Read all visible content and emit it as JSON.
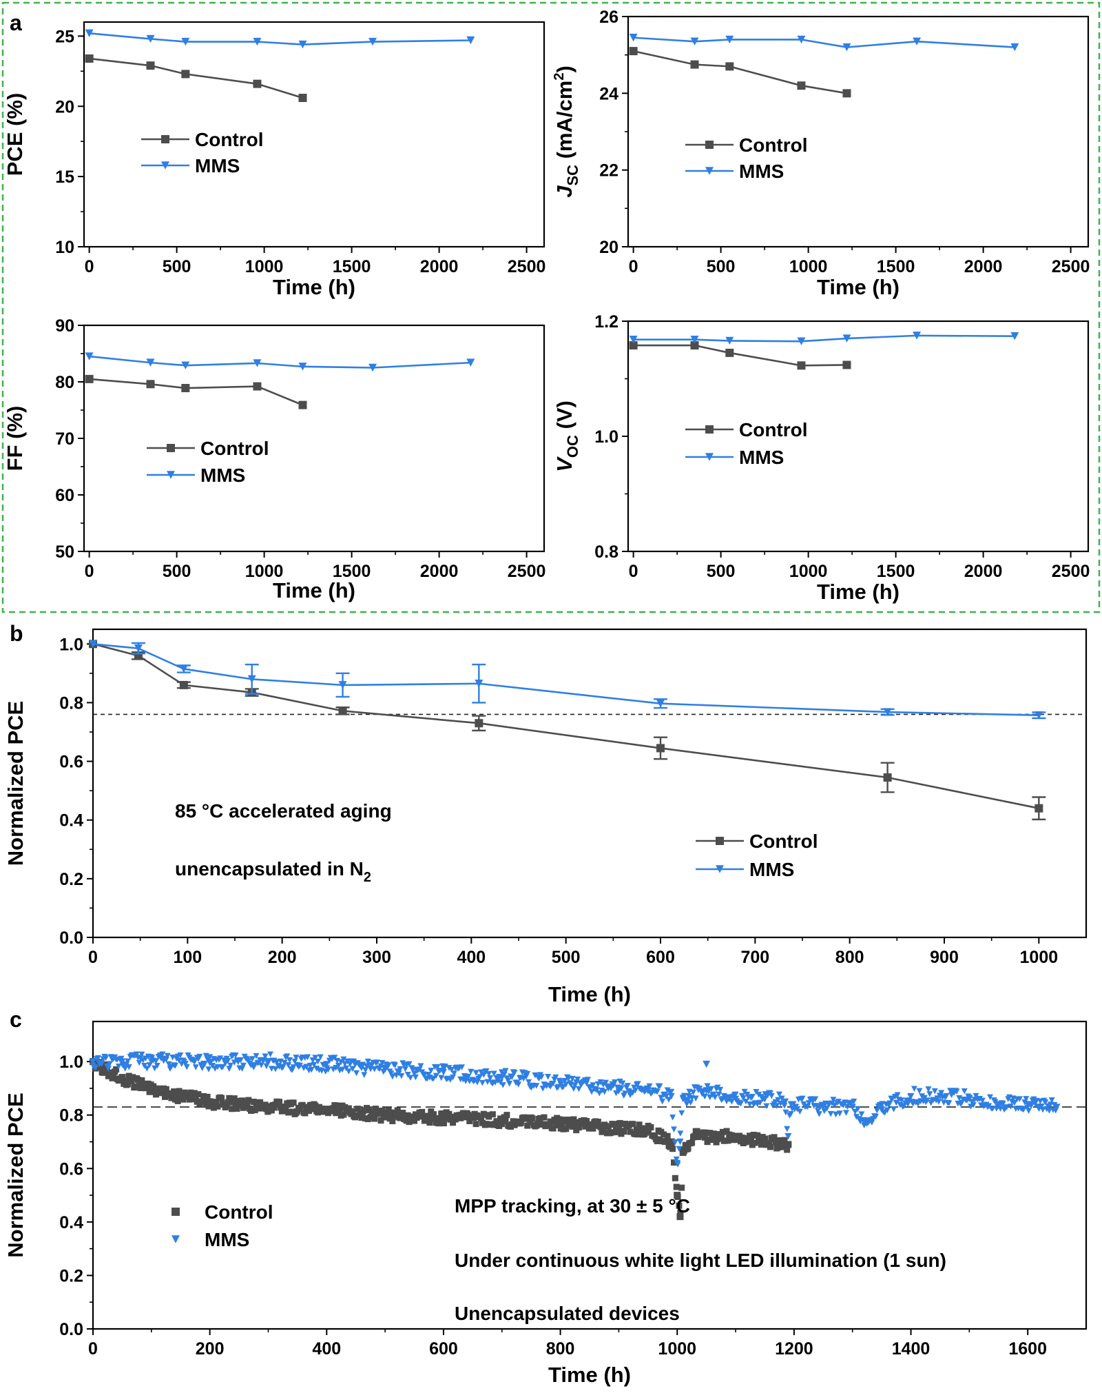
{
  "panel_labels": {
    "a": "a",
    "b": "b",
    "c": "c"
  },
  "colors": {
    "control": "#4d4d4d",
    "mms": "#2f7fe3",
    "frame": "#3cb44b"
  },
  "legend": {
    "control": "Control",
    "mms": "MMS"
  },
  "chart_data": [
    {
      "id": "a1",
      "type": "line",
      "panel": "a",
      "xlabel": "Time (h)",
      "ylabel": "PCE (%)",
      "xlim": [
        -30,
        2600
      ],
      "ylim": [
        10,
        26
      ],
      "xticks": [
        0,
        500,
        1000,
        1500,
        2000,
        2500
      ],
      "xtick_labels": [
        "0",
        "500",
        "1000",
        "1500",
        "2000",
        "2500"
      ],
      "yticks": [
        10,
        15,
        20,
        25
      ],
      "ytick_labels": [
        "10",
        "15",
        "20",
        "25"
      ],
      "series": [
        {
          "name": "Control",
          "marker": "square",
          "x": [
            0,
            350,
            550,
            960,
            1220
          ],
          "y": [
            23.4,
            22.9,
            22.3,
            21.6,
            20.6
          ]
        },
        {
          "name": "MMS",
          "marker": "triangle-down",
          "x": [
            0,
            350,
            550,
            960,
            1220,
            1620,
            2180
          ],
          "y": [
            25.2,
            24.8,
            24.6,
            24.6,
            24.4,
            24.6,
            24.7
          ]
        }
      ]
    },
    {
      "id": "a2",
      "type": "line",
      "panel": "a",
      "xlabel": "Time (h)",
      "ylabel": "JSC (mA/cm2)",
      "ylabel_parts": {
        "main": "J",
        "sub": "SC",
        "mid": " (mA/cm",
        "sup": "2",
        "end": ")"
      },
      "xlim": [
        -30,
        2600
      ],
      "ylim": [
        20,
        26
      ],
      "xticks": [
        0,
        500,
        1000,
        1500,
        2000,
        2500
      ],
      "xtick_labels": [
        "0",
        "500",
        "1000",
        "1500",
        "2000",
        "2500"
      ],
      "yticks": [
        20,
        22,
        24,
        26
      ],
      "ytick_labels": [
        "20",
        "22",
        "24",
        "26"
      ],
      "series": [
        {
          "name": "Control",
          "marker": "square",
          "x": [
            0,
            350,
            550,
            960,
            1220
          ],
          "y": [
            25.1,
            24.75,
            24.7,
            24.2,
            24.0
          ]
        },
        {
          "name": "MMS",
          "marker": "triangle-down",
          "x": [
            0,
            350,
            550,
            960,
            1220,
            1620,
            2180
          ],
          "y": [
            25.45,
            25.35,
            25.4,
            25.4,
            25.2,
            25.35,
            25.2
          ]
        }
      ]
    },
    {
      "id": "a3",
      "type": "line",
      "panel": "a",
      "xlabel": "Time (h)",
      "ylabel": "FF (%)",
      "xlim": [
        -30,
        2600
      ],
      "ylim": [
        50,
        90
      ],
      "xticks": [
        0,
        500,
        1000,
        1500,
        2000,
        2500
      ],
      "xtick_labels": [
        "0",
        "500",
        "1000",
        "1500",
        "2000",
        "2500"
      ],
      "yticks": [
        50,
        60,
        70,
        80,
        90
      ],
      "ytick_labels": [
        "50",
        "60",
        "70",
        "80",
        "90"
      ],
      "series": [
        {
          "name": "Control",
          "marker": "square",
          "x": [
            0,
            350,
            550,
            960,
            1220
          ],
          "y": [
            80.5,
            79.6,
            78.9,
            79.2,
            75.9
          ]
        },
        {
          "name": "MMS",
          "marker": "triangle-down",
          "x": [
            0,
            350,
            550,
            960,
            1220,
            1620,
            2180
          ],
          "y": [
            84.5,
            83.4,
            82.9,
            83.3,
            82.7,
            82.5,
            83.4
          ]
        }
      ]
    },
    {
      "id": "a4",
      "type": "line",
      "panel": "a",
      "xlabel": "Time (h)",
      "ylabel": "VOC (V)",
      "ylabel_parts": {
        "main": "V",
        "sub": "OC",
        "mid": " (V)",
        "sup": "",
        "end": ""
      },
      "xlim": [
        -30,
        2600
      ],
      "ylim": [
        0.8,
        1.2
      ],
      "xticks": [
        0,
        500,
        1000,
        1500,
        2000,
        2500
      ],
      "xtick_labels": [
        "0",
        "500",
        "1000",
        "1500",
        "2000",
        "2500"
      ],
      "yticks": [
        0.8,
        1.0,
        1.2
      ],
      "ytick_labels": [
        "0.8",
        "1.0",
        "1.2"
      ],
      "series": [
        {
          "name": "Control",
          "marker": "square",
          "x": [
            0,
            350,
            550,
            960,
            1220
          ],
          "y": [
            1.158,
            1.158,
            1.145,
            1.123,
            1.124
          ]
        },
        {
          "name": "MMS",
          "marker": "triangle-down",
          "x": [
            0,
            350,
            550,
            960,
            1220,
            1620,
            2180
          ],
          "y": [
            1.168,
            1.168,
            1.166,
            1.165,
            1.17,
            1.175,
            1.174
          ]
        }
      ]
    },
    {
      "id": "b",
      "type": "line",
      "panel": "b",
      "xlabel": "Time (h)",
      "ylabel": "Normalized PCE",
      "xlim": [
        0,
        1050
      ],
      "ylim": [
        0,
        1.05
      ],
      "xticks": [
        0,
        100,
        200,
        300,
        400,
        500,
        600,
        700,
        800,
        900,
        1000
      ],
      "xtick_labels": [
        "0",
        "100",
        "200",
        "300",
        "400",
        "500",
        "600",
        "700",
        "800",
        "900",
        "1000"
      ],
      "yticks": [
        0,
        0.2,
        0.4,
        0.6,
        0.8,
        1.0
      ],
      "ytick_labels": [
        "0.0",
        "0.2",
        "0.4",
        "0.6",
        "0.8",
        "1.0"
      ],
      "reference_line_y": 0.76,
      "annotations": [
        "85 °C accelerated aging",
        "unencapsulated in N"
      ],
      "annotation_subscript": "2",
      "series": [
        {
          "name": "Control",
          "marker": "square",
          "x": [
            0,
            48,
            96,
            168,
            264,
            408,
            600,
            840,
            1000
          ],
          "y": [
            1.0,
            0.96,
            0.86,
            0.835,
            0.772,
            0.73,
            0.645,
            0.545,
            0.44
          ],
          "err": [
            0,
            0.012,
            0.01,
            0.012,
            0.012,
            0.025,
            0.037,
            0.05,
            0.038
          ]
        },
        {
          "name": "MMS",
          "marker": "triangle-down",
          "x": [
            0,
            48,
            96,
            168,
            264,
            408,
            600,
            840,
            1000
          ],
          "y": [
            1.0,
            0.985,
            0.915,
            0.88,
            0.86,
            0.865,
            0.797,
            0.768,
            0.757
          ],
          "err": [
            0,
            0.018,
            0.012,
            0.05,
            0.04,
            0.065,
            0.015,
            0.01,
            0.01
          ]
        }
      ]
    },
    {
      "id": "c",
      "type": "scatter",
      "panel": "c",
      "xlabel": "Time (h)",
      "ylabel": "Normalized PCE",
      "xlim": [
        0,
        1700
      ],
      "ylim": [
        0,
        1.15
      ],
      "xticks": [
        0,
        200,
        400,
        600,
        800,
        1000,
        1200,
        1400,
        1600
      ],
      "xtick_labels": [
        "0",
        "200",
        "400",
        "600",
        "800",
        "1000",
        "1200",
        "1400",
        "1600"
      ],
      "yticks": [
        0,
        0.2,
        0.4,
        0.6,
        0.8,
        1.0
      ],
      "ytick_labels": [
        "0.0",
        "0.2",
        "0.4",
        "0.6",
        "0.8",
        "1.0"
      ],
      "reference_line_y": 0.83,
      "annotations": [
        "MPP tracking, at 30 ± 5 °C",
        "Under continuous white light LED illumination (1 sun)",
        "Unencapsulated devices"
      ],
      "series": [
        {
          "name": "Control",
          "marker": "square",
          "x": [
            0,
            20,
            50,
            100,
            150,
            200,
            300,
            400,
            500,
            600,
            700,
            800,
            900,
            950,
            990,
            1000,
            1005,
            1010,
            1030,
            1100,
            1150,
            1190
          ],
          "y": [
            1.0,
            0.97,
            0.94,
            0.9,
            0.87,
            0.85,
            0.83,
            0.82,
            0.8,
            0.79,
            0.78,
            0.77,
            0.75,
            0.74,
            0.7,
            0.5,
            0.42,
            0.66,
            0.72,
            0.72,
            0.7,
            0.69
          ]
        },
        {
          "name": "MMS",
          "marker": "triangle-down",
          "x": [
            0,
            50,
            100,
            200,
            300,
            400,
            500,
            600,
            700,
            800,
            900,
            950,
            990,
            1000,
            1005,
            1010,
            1020,
            1050,
            1100,
            1150,
            1185,
            1190,
            1195,
            1250,
            1300,
            1320,
            1350,
            1400,
            1450,
            1500,
            1550,
            1600,
            1650
          ],
          "y": [
            1.0,
            1.0,
            1.0,
            0.995,
            1.0,
            0.99,
            0.97,
            0.96,
            0.94,
            0.92,
            0.9,
            0.89,
            0.87,
            0.62,
            0.7,
            0.86,
            0.87,
            0.89,
            0.86,
            0.86,
            0.85,
            0.72,
            0.84,
            0.83,
            0.83,
            0.78,
            0.82,
            0.87,
            0.87,
            0.86,
            0.84,
            0.84,
            0.83
          ]
        }
      ]
    }
  ]
}
